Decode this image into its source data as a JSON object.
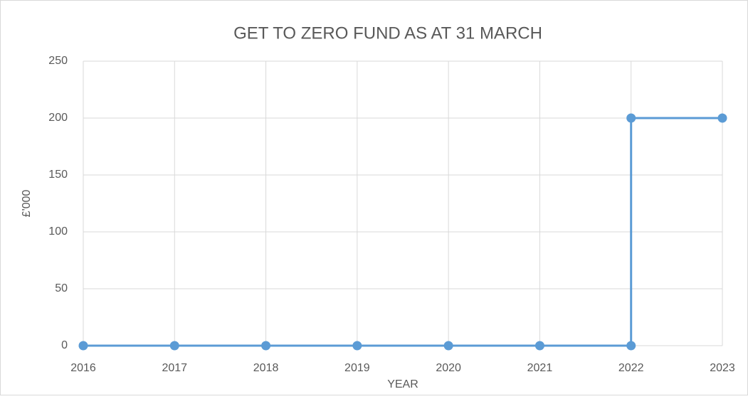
{
  "chart_data": {
    "type": "line",
    "title": "GET TO ZERO FUND AS AT 31 MARCH",
    "x_label": "YEAR",
    "y_label": "£'000",
    "x": [
      2016,
      2017,
      2018,
      2019,
      2020,
      2021,
      2022,
      2022,
      2023
    ],
    "series": [
      {
        "name": "Get to Zero Fund",
        "color": "#5b9bd5",
        "values": [
          0,
          0,
          0,
          0,
          0,
          0,
          0,
          200,
          200
        ]
      }
    ],
    "xlim": [
      2016,
      2023
    ],
    "xticks": [
      2016,
      2017,
      2018,
      2019,
      2020,
      2021,
      2022,
      2023
    ],
    "ylim": [
      0,
      250
    ],
    "yticks": [
      0,
      50,
      100,
      150,
      200,
      250
    ],
    "grid": true
  }
}
